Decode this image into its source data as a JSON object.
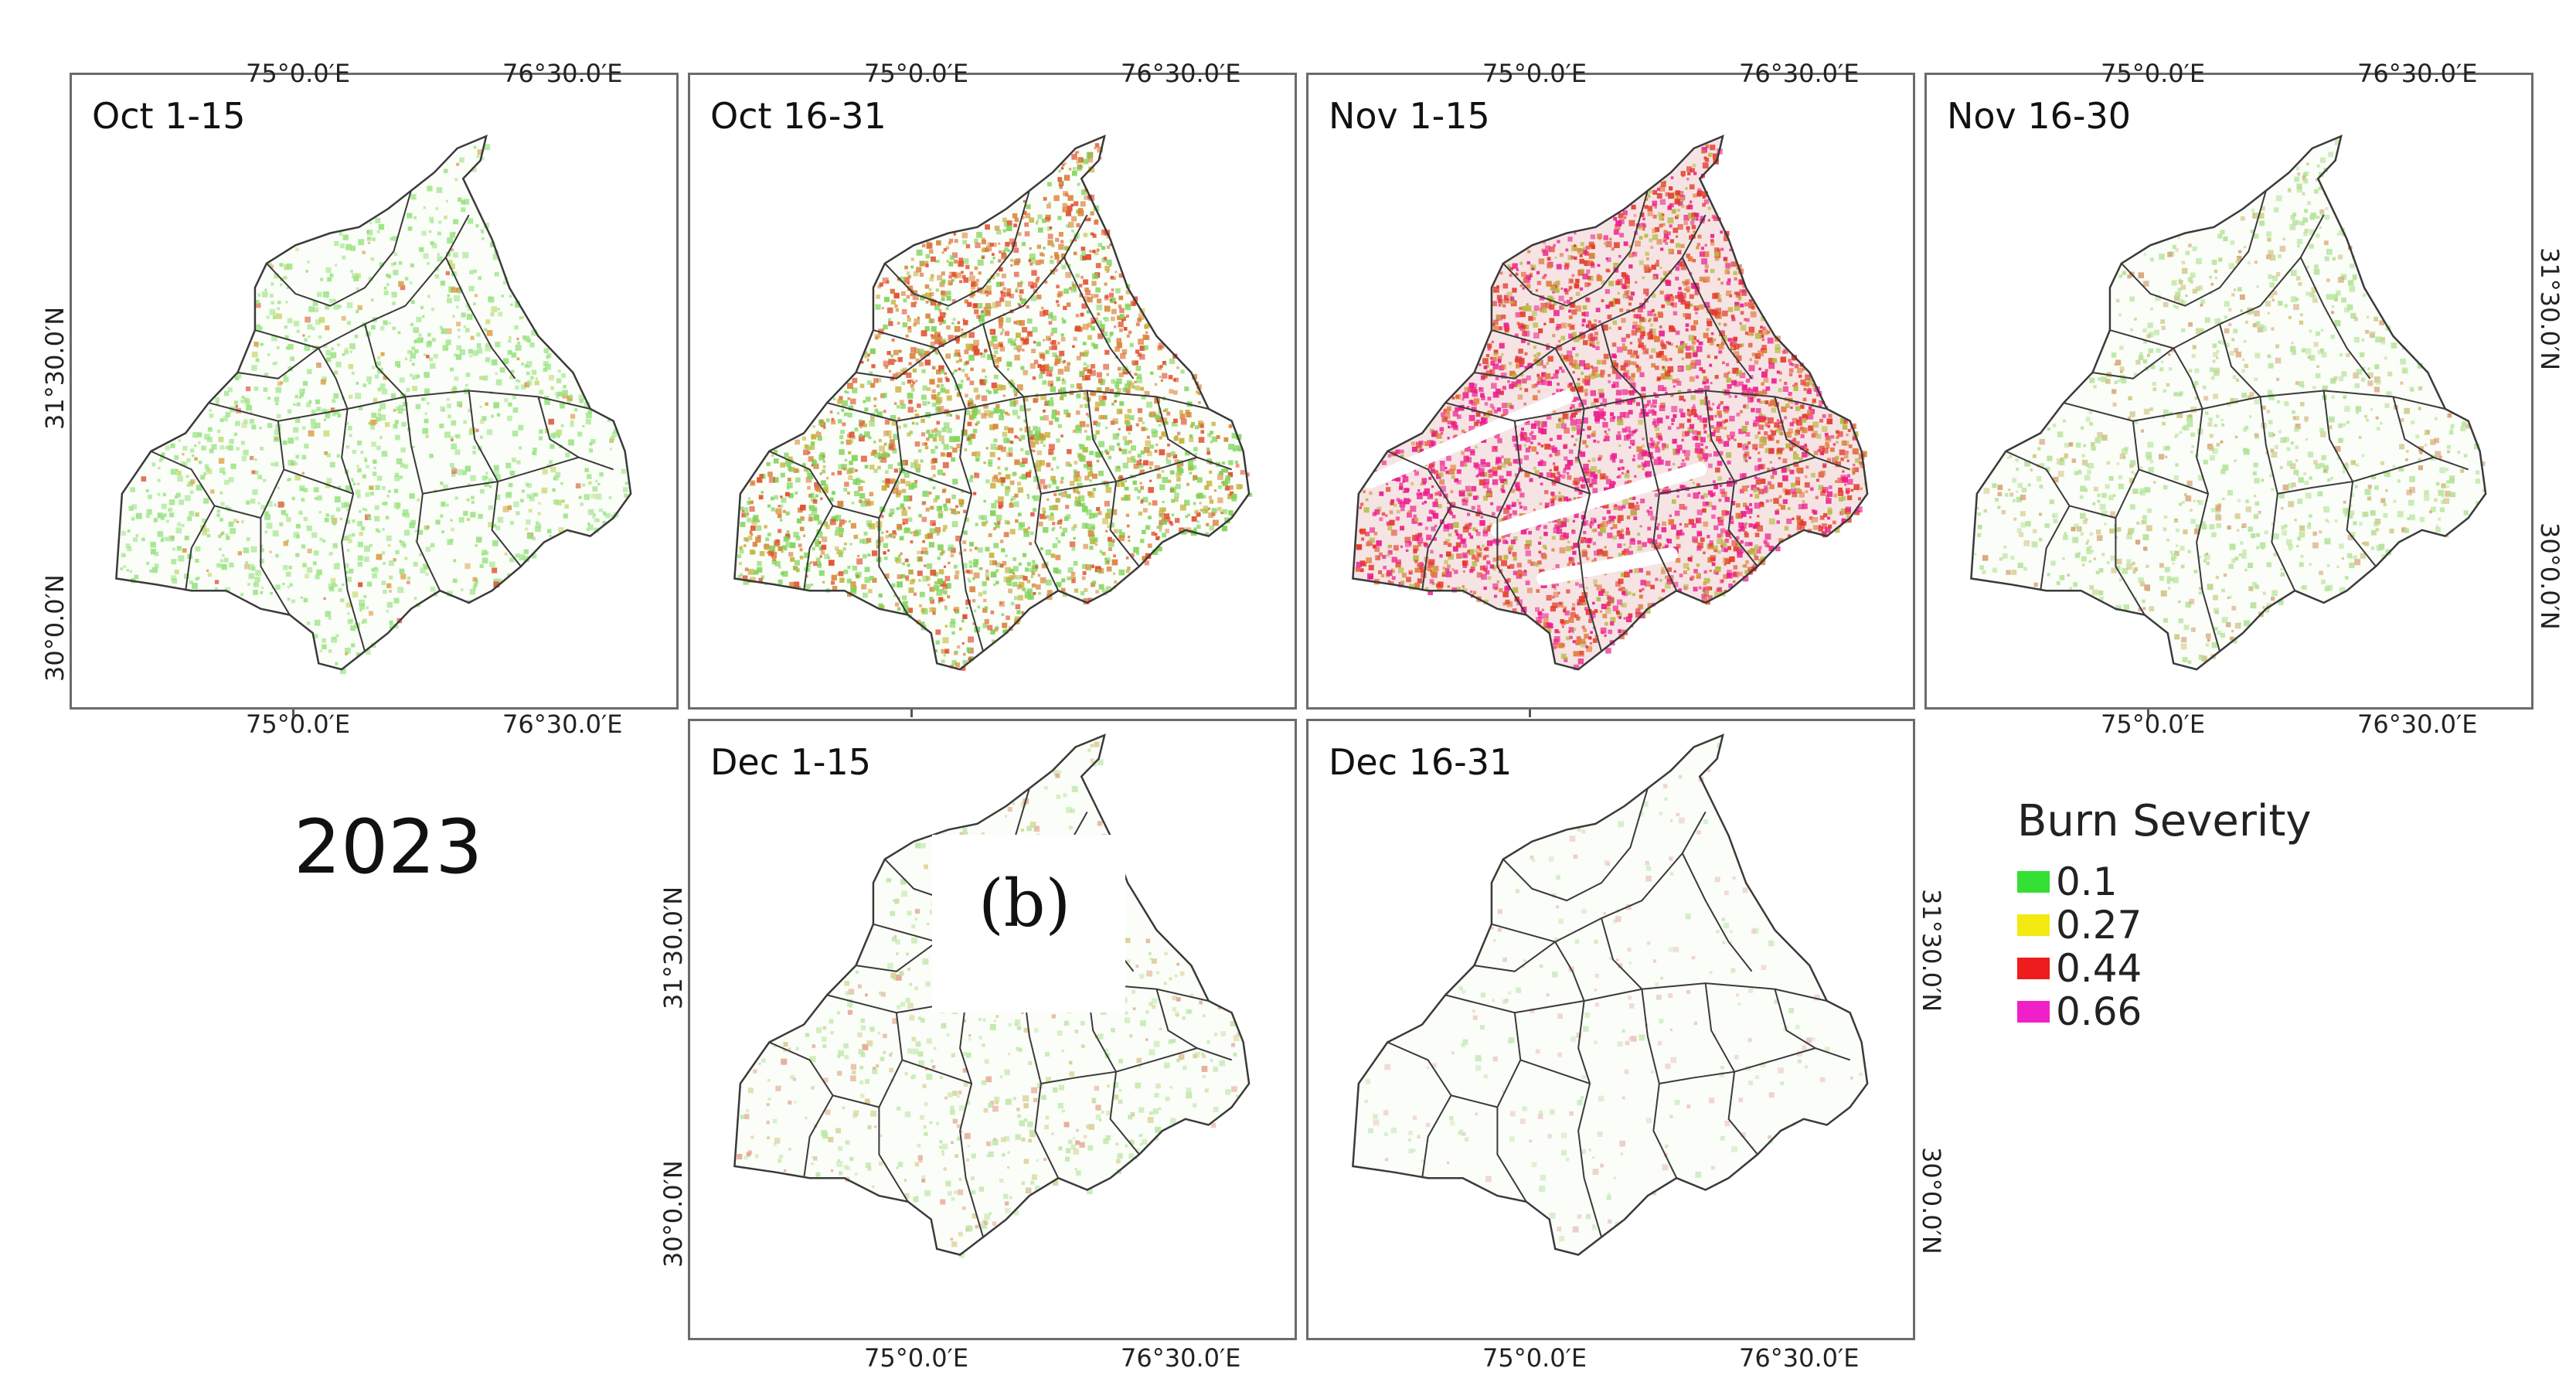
{
  "year_label": "2023",
  "panel_letter": "(b)",
  "axis_labels": {
    "lon": [
      "75°0.0′E",
      "76°30.0′E"
    ],
    "lat": [
      "31°30.0′N",
      "30°0.0′N"
    ]
  },
  "panels": [
    {
      "title": "Oct 1-15",
      "severity": "green-dominant"
    },
    {
      "title": "Oct 16-31",
      "severity": "green-and-orange"
    },
    {
      "title": "Nov 1-15",
      "severity": "red-magenta-dominant"
    },
    {
      "title": "Nov 16-30",
      "severity": "light-green"
    },
    {
      "title": "Dec 1-15",
      "severity": "sparse"
    },
    {
      "title": "Dec 16-31",
      "severity": "very-sparse"
    }
  ],
  "legend": {
    "title": "Burn Severity",
    "items": [
      {
        "value": "0.1",
        "color": "#33e033"
      },
      {
        "value": "0.27",
        "color": "#f2ea10"
      },
      {
        "value": "0.44",
        "color": "#ee1c1c"
      },
      {
        "value": "0.66",
        "color": "#f020c8"
      }
    ]
  },
  "colors": {
    "frame": "#6b6b6b",
    "boundary": "#3a3a3a",
    "green": "#7fdc5a",
    "yellow": "#d9c23a",
    "orange": "#e0823a",
    "red": "#e23a2a",
    "magenta": "#ec1c8c"
  }
}
